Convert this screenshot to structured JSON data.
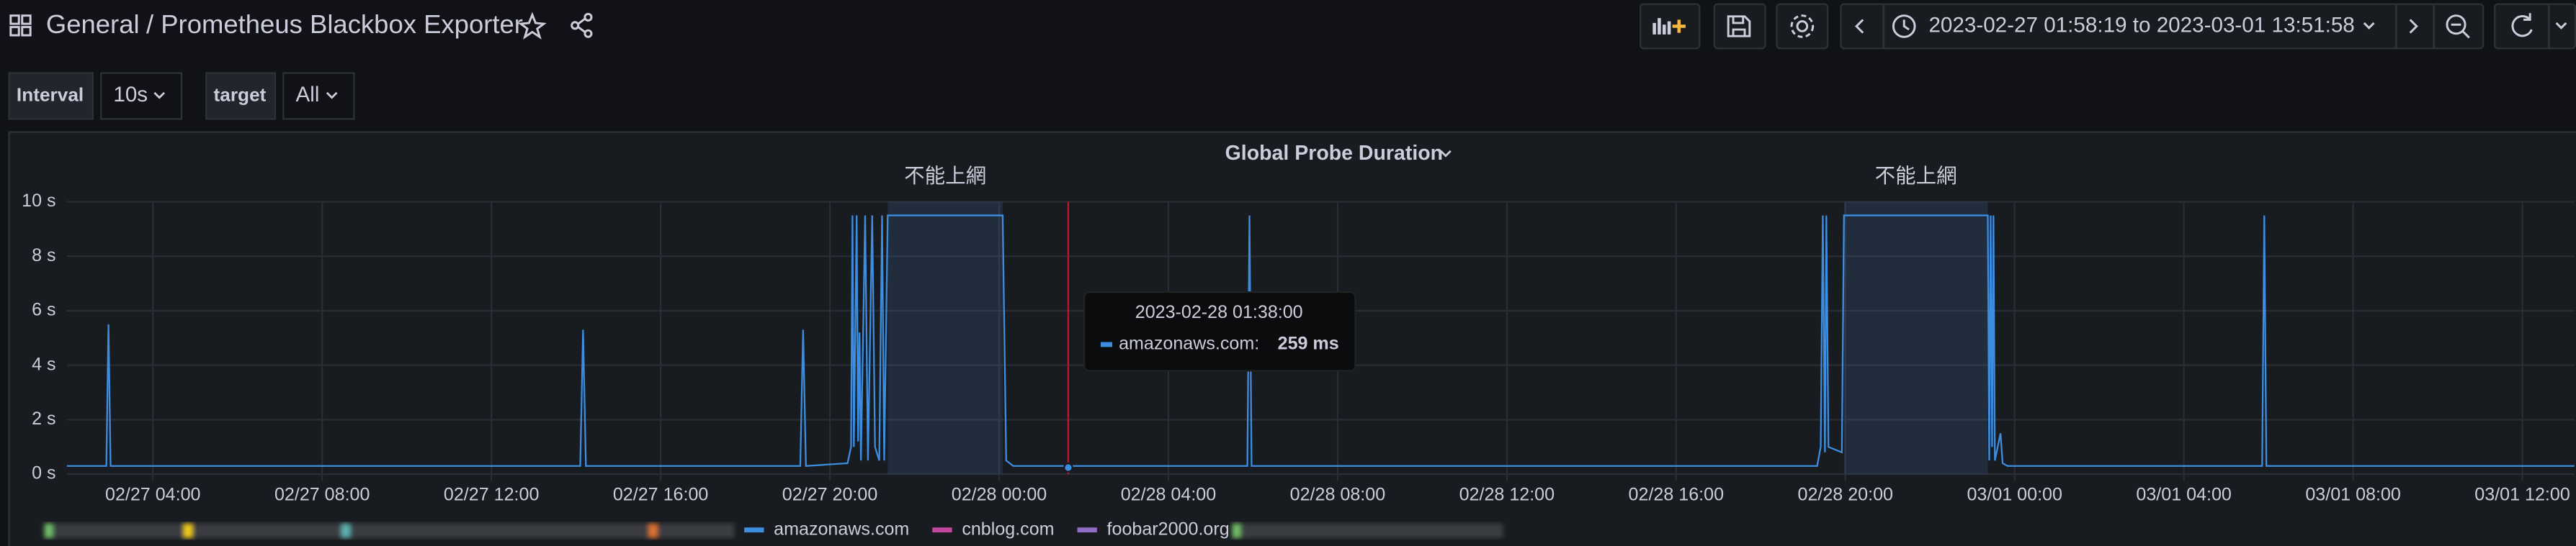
{
  "header": {
    "breadcrumb": "General",
    "title": "/ Prometheus Blackbox Exporter",
    "time_range": "2023-02-27 01:58:19 to 2023-03-01 13:51:58"
  },
  "variables": [
    {
      "label": "Interval",
      "value": "10s"
    },
    {
      "label": "target",
      "value": "All"
    }
  ],
  "chart_data": {
    "type": "line",
    "title": "Global Probe Duration",
    "x": [
      "02/27 01:58",
      "02/27 02:54",
      "02/27 02:57",
      "02/27 03:00",
      "02/27 14:06",
      "02/27 14:10",
      "02/27 14:14",
      "02/27 19:18",
      "02/27 19:22",
      "02/27 19:26",
      "02/27 20:25",
      "02/27 20:30",
      "02/27 20:32",
      "02/27 20:34",
      "02/27 20:38",
      "02/27 20:40",
      "02/27 20:42",
      "02/27 20:44",
      "02/27 20:50",
      "02/27 20:54",
      "02/27 21:00",
      "02/27 21:04",
      "02/27 21:10",
      "02/27 21:14",
      "02/27 21:17",
      "02/27 21:22",
      "02/28 00:05",
      "02/28 00:10",
      "02/28 00:20",
      "02/28 05:52",
      "02/28 05:55",
      "02/28 05:58",
      "02/28 19:20",
      "02/28 19:25",
      "02/28 19:28",
      "02/28 19:31",
      "02/28 19:33",
      "02/28 19:36",
      "02/28 19:55",
      "02/28 19:58",
      "02/28 23:22",
      "02/28 23:24",
      "02/28 23:26",
      "02/28 23:28",
      "02/28 23:30",
      "02/28 23:32",
      "02/28 23:40",
      "02/28 23:43",
      "02/28 23:50",
      "03/01 05:51",
      "03/01 05:54",
      "03/01 05:57",
      "03/01 13:51"
    ],
    "series": [
      {
        "name": "amazonaws.com",
        "color": "#3d8ee0",
        "values": [
          0.3,
          0.3,
          5.5,
          0.3,
          0.3,
          5.3,
          0.3,
          0.3,
          5.3,
          0.3,
          0.4,
          1.0,
          9.5,
          1.0,
          9.5,
          1.2,
          5.2,
          0.5,
          9.5,
          0.5,
          9.5,
          1.0,
          0.5,
          9.5,
          0.5,
          9.5,
          9.5,
          0.5,
          0.3,
          0.3,
          9.5,
          0.3,
          0.3,
          1.0,
          9.5,
          0.8,
          9.5,
          1.0,
          0.8,
          9.5,
          9.5,
          0.5,
          9.5,
          1.0,
          9.5,
          0.5,
          1.5,
          0.4,
          0.3,
          0.3,
          9.5,
          0.3,
          0.3
        ]
      }
    ],
    "other_series": [
      {
        "name": "cnblog.com",
        "color": "#c4479f"
      },
      {
        "name": "foobar2000.org",
        "color": "#8f6cc6"
      }
    ],
    "xlim": [
      "02/27 01:58",
      "03/01 13:51"
    ],
    "xticks": [
      "02/27 04:00",
      "02/27 08:00",
      "02/27 12:00",
      "02/27 16:00",
      "02/27 20:00",
      "02/28 00:00",
      "02/28 04:00",
      "02/28 08:00",
      "02/28 12:00",
      "02/28 16:00",
      "02/28 20:00",
      "03/01 00:00",
      "03/01 04:00",
      "03/01 08:00",
      "03/01 12:00"
    ],
    "ylim": [
      0,
      10
    ],
    "yticks": [
      {
        "value": 0,
        "label": "0 s"
      },
      {
        "value": 2,
        "label": "2 s"
      },
      {
        "value": 4,
        "label": "4 s"
      },
      {
        "value": 6,
        "label": "6 s"
      },
      {
        "value": 8,
        "label": "8 s"
      },
      {
        "value": 10,
        "label": "10 s"
      }
    ],
    "grid": true,
    "annotations": [
      {
        "text": "不能上網",
        "x": [
          "02/27 21:22",
          "02/28 00:05"
        ]
      },
      {
        "text": "不能上網",
        "x": [
          "02/28 19:58",
          "02/28 23:22"
        ]
      }
    ]
  },
  "tooltip": {
    "time": "2023-02-28 01:38:00",
    "series": "amazonaws.com:",
    "value": "259 ms"
  }
}
